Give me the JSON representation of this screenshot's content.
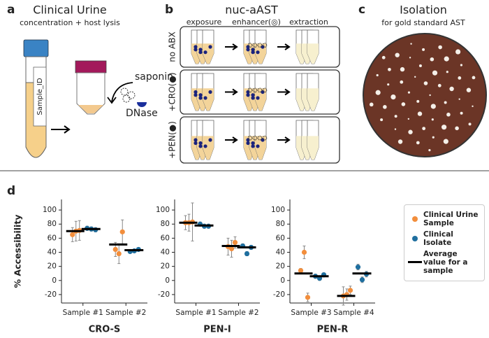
{
  "panels": {
    "a": {
      "letter": "a",
      "title": "Clinical Urine",
      "subtitle": "concentration + host lysis",
      "tube_label": "Sample_ID",
      "reagent1": "saponin",
      "reagent2": "DNase"
    },
    "b": {
      "letter": "b",
      "title": "nuc-aAST",
      "columns": [
        "exposure",
        "enhancer(◎)",
        "extraction"
      ],
      "rows": [
        "no ABX",
        "+CRO(●)",
        "+PEN(●)"
      ]
    },
    "c": {
      "letter": "c",
      "title": "Isolation",
      "subtitle": "for gold standard AST"
    },
    "d": {
      "letter": "d"
    }
  },
  "chart_data": [
    {
      "type": "scatter",
      "title": "CRO-S",
      "ylabel": "% Accessibility",
      "categories": [
        "Sample #1",
        "Sample #2"
      ],
      "ylim": [
        -32,
        115
      ],
      "yticks": [
        -20,
        0,
        20,
        40,
        60,
        80,
        100
      ],
      "series": [
        {
          "color": "#f28e3c",
          "values": [
            [
              65,
              70,
              71
            ],
            [
              44,
              38,
              69
            ]
          ],
          "errors": [
            [
              10,
              14,
              14
            ],
            [
              10,
              14,
              17
            ]
          ]
        },
        {
          "color": "#1f6f9f",
          "values": [
            [
              74,
              73,
              72
            ],
            [
              41,
              42,
              44
            ]
          ],
          "errors": [
            [
              3,
              3,
              3
            ],
            [
              2,
              2,
              2
            ]
          ]
        },
        {
          "color": "#000000",
          "values": [
            [
              70,
              73
            ],
            [
              51,
              43
            ]
          ]
        }
      ]
    },
    {
      "type": "scatter",
      "title": "PEN-I",
      "categories": [
        "Sample #1",
        "Sample #2"
      ],
      "ylim": [
        -32,
        115
      ],
      "yticks": [
        -20,
        0,
        20,
        40,
        60,
        80,
        100
      ],
      "series": [
        {
          "color": "#f28e3c",
          "values": [
            [
              82,
              82,
              83
            ],
            [
              48,
              45,
              54
            ]
          ],
          "errors": [
            [
              10,
              12,
              27
            ],
            [
              12,
              12,
              8
            ]
          ]
        },
        {
          "color": "#1f6f9f",
          "values": [
            [
              80,
              77,
              77
            ],
            [
              49,
              38,
              47
            ]
          ],
          "errors": [
            [
              3,
              3,
              3
            ],
            [
              3,
              3,
              3
            ]
          ]
        },
        {
          "color": "#000000",
          "values": [
            [
              82,
              78
            ],
            [
              49,
              47
            ]
          ]
        }
      ]
    },
    {
      "type": "scatter",
      "title": "PEN-R",
      "categories": [
        "Sample #3",
        "Sample #4"
      ],
      "ylim": [
        -32,
        115
      ],
      "yticks": [
        -20,
        0,
        20,
        40,
        60,
        80,
        100
      ],
      "series": [
        {
          "name": "Clinical Urine Sample",
          "color": "#f28e3c",
          "values": [
            [
              14,
              40,
              -24
            ],
            [
              -22,
              -20,
              -14
            ]
          ],
          "errors": [
            [
              3,
              9,
              6
            ],
            [
              13,
              8,
              6
            ]
          ]
        },
        {
          "name": "Clinical Isolate",
          "color": "#1f6f9f",
          "values": [
            [
              6,
              3,
              8
            ],
            [
              19,
              1,
              9
            ]
          ],
          "errors": [
            [
              3,
              3,
              3
            ],
            [
              4,
              4,
              4
            ]
          ]
        },
        {
          "name": "Average value for a sample",
          "color": "#000000",
          "values": [
            [
              10,
              6
            ],
            [
              -22,
              10
            ]
          ]
        }
      ]
    }
  ]
}
